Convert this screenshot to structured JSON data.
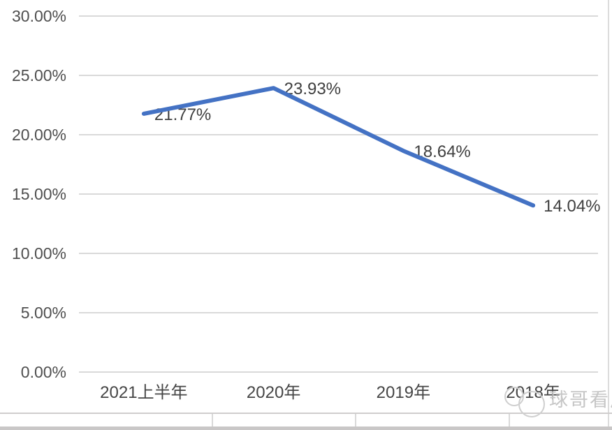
{
  "chart_data": {
    "type": "line",
    "categories": [
      "2021上半年",
      "2020年",
      "2019年",
      "2018年"
    ],
    "values": [
      21.77,
      23.93,
      18.64,
      14.04
    ],
    "labels": [
      "21.77%",
      "23.93%",
      "18.64%",
      "14.04%"
    ],
    "y_ticks": [
      "30.00%",
      "25.00%",
      "20.00%",
      "15.00%",
      "10.00%",
      "5.00%",
      "0.00%"
    ],
    "y_tick_values": [
      30,
      25,
      20,
      15,
      10,
      5,
      0
    ],
    "ylim": [
      0,
      30
    ],
    "title": "",
    "xlabel": "",
    "ylabel": "",
    "grid": true,
    "legend": false,
    "line_color": "#4472C4",
    "gridline_color": "#d9d9d9"
  },
  "watermark": {
    "text": "球哥看风"
  }
}
